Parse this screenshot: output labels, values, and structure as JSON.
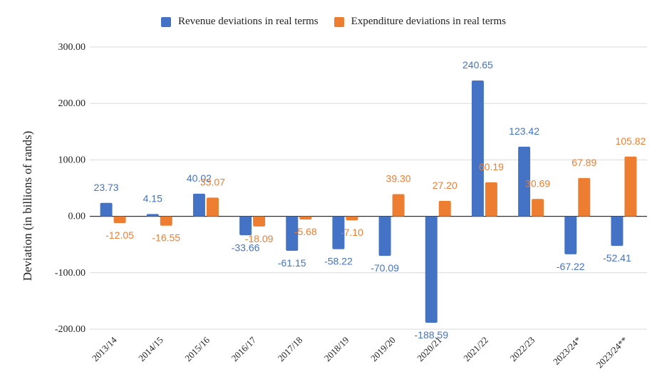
{
  "chart_data": {
    "type": "bar",
    "title": "",
    "xlabel": "",
    "ylabel": "Deviation (in billions of rands)",
    "ylim": [
      -200,
      300
    ],
    "yticks": [
      300,
      200,
      100,
      0,
      -100,
      -200
    ],
    "ytick_labels": [
      "300.00",
      "200.00",
      "100.00",
      "0.00",
      "-100.00",
      "-200.00"
    ],
    "grid": true,
    "legend_position": "top-center",
    "categories": [
      "2013/14",
      "2014/15",
      "2015/16",
      "2016/17",
      "2017/18",
      "2018/19",
      "2019/20",
      "2020/21",
      "2021/22",
      "2022/23",
      "2023/24*",
      "2023/24**"
    ],
    "series": [
      {
        "name": "Revenue deviations in real terms",
        "color": "#4472C4",
        "values": [
          23.73,
          4.15,
          40.02,
          -33.66,
          -61.15,
          -58.22,
          -70.09,
          -188.59,
          240.65,
          123.42,
          -67.22,
          -52.41
        ],
        "labels": [
          "23.73",
          "4.15",
          "40.02",
          "-33.66",
          "-61.15",
          "-58.22",
          "-70.09",
          "-188.59",
          "240.65",
          "123.42",
          "-67.22",
          "-52.41"
        ]
      },
      {
        "name": "Expenditure deviations in real terms",
        "color": "#ED7D31",
        "values": [
          -12.05,
          -16.55,
          33.07,
          -18.09,
          -5.68,
          -7.1,
          39.3,
          27.2,
          60.19,
          30.69,
          67.89,
          105.82
        ],
        "labels": [
          "-12.05",
          "-16.55",
          "33.07",
          "-18.09",
          "-5.68",
          "-7.10",
          "39.30",
          "27.20",
          "60.19",
          "30.69",
          "67.89",
          "105.82"
        ]
      }
    ]
  }
}
